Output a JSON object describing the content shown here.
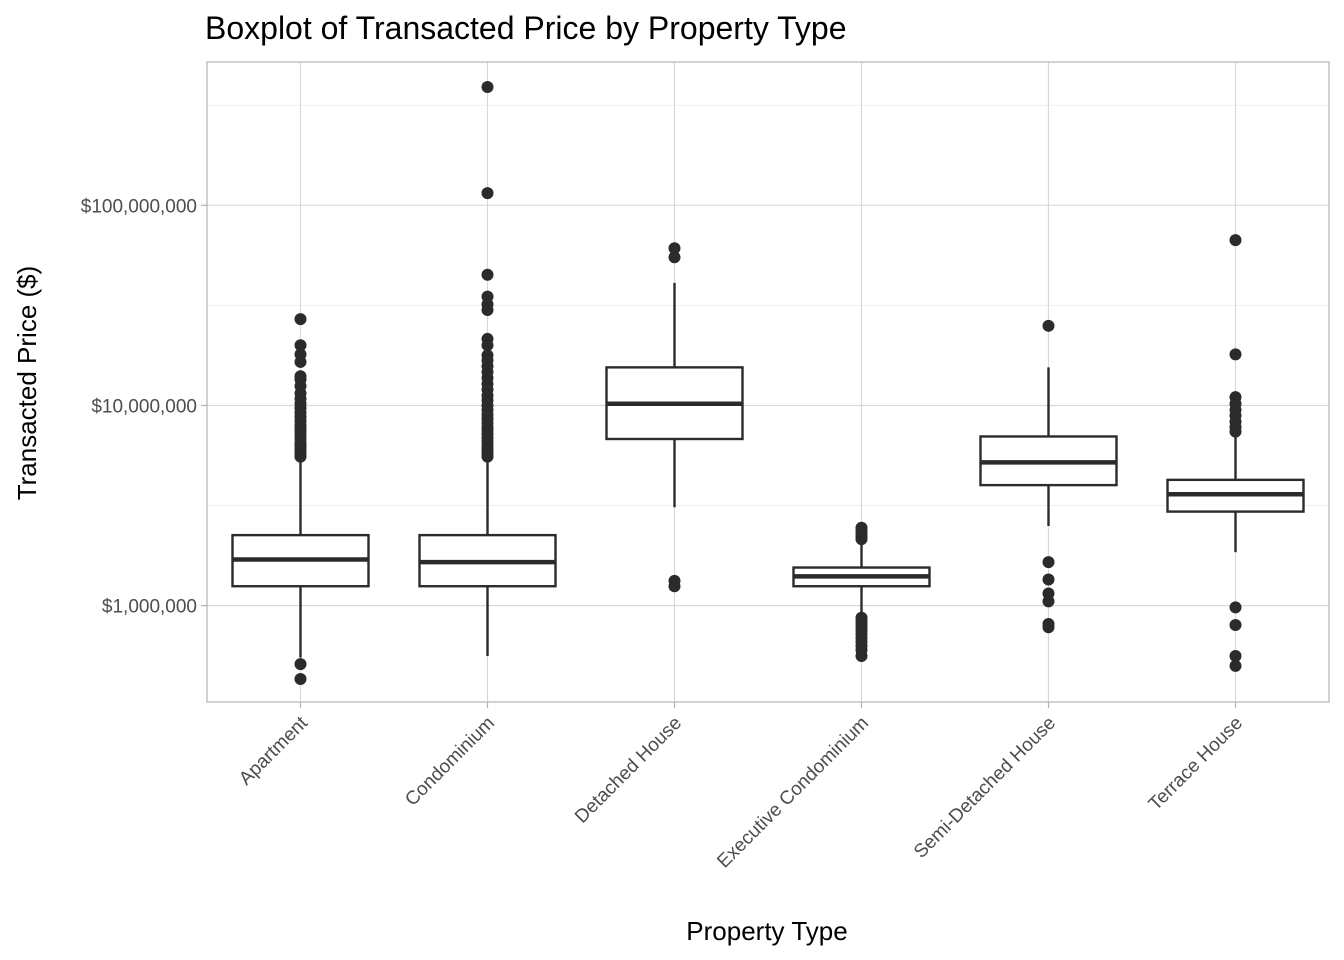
{
  "chart_data": {
    "type": "boxplot",
    "title": "Boxplot of Transacted Price by Property Type",
    "xlabel": "Property Type",
    "ylabel": "Transacted Price ($)",
    "yscale": "log10",
    "ylim": [
      330000,
      520000000
    ],
    "yticks": [
      {
        "value": 1000000,
        "label": "$1,000,000"
      },
      {
        "value": 10000000,
        "label": "$10,000,000"
      },
      {
        "value": 100000000,
        "label": "$100,000,000"
      }
    ],
    "grid": true,
    "categories": [
      "Apartment",
      "Condominium",
      "Detached House",
      "Executive Condominium",
      "Semi-Detached House",
      "Terrace House"
    ],
    "boxes": [
      {
        "category": "Apartment",
        "q1": 1250000,
        "median": 1700000,
        "q3": 2250000,
        "whisker_low": 550000,
        "whisker_high": 5500000,
        "outliers": [
          430000,
          510000,
          5550000,
          5700000,
          5900000,
          6100000,
          6300000,
          6500000,
          6800000,
          7100000,
          7400000,
          7700000,
          8000000,
          8400000,
          8800000,
          9200000,
          9700000,
          10200000,
          10800000,
          11500000,
          12500000,
          13500000,
          14000000,
          16500000,
          18000000,
          20000000,
          27000000
        ]
      },
      {
        "category": "Condominium",
        "q1": 1250000,
        "median": 1650000,
        "q3": 2250000,
        "whisker_low": 560000,
        "whisker_high": 5500000,
        "outliers": [
          5550000,
          5700000,
          5900000,
          6100000,
          6300000,
          6600000,
          6900000,
          7200000,
          7500000,
          7800000,
          8200000,
          8600000,
          9000000,
          9500000,
          10000000,
          10600000,
          11200000,
          12000000,
          12800000,
          13700000,
          14700000,
          15700000,
          16800000,
          17800000,
          20000000,
          21500000,
          30000000,
          32000000,
          35000000,
          45000000,
          115000000,
          390000000
        ]
      },
      {
        "category": "Detached House",
        "q1": 6800000,
        "median": 10200000,
        "q3": 15500000,
        "whisker_low": 3100000,
        "whisker_high": 41000000,
        "outliers": [
          1250000,
          1330000,
          55000000,
          61000000
        ]
      },
      {
        "category": "Executive Condominium",
        "q1": 1250000,
        "median": 1400000,
        "q3": 1550000,
        "whisker_low": 900000,
        "whisker_high": 2100000,
        "outliers": [
          560000,
          600000,
          630000,
          660000,
          690000,
          720000,
          750000,
          780000,
          810000,
          840000,
          870000,
          2150000,
          2220000,
          2300000,
          2380000,
          2450000
        ]
      },
      {
        "category": "Semi-Detached House",
        "q1": 4000000,
        "median": 5200000,
        "q3": 7000000,
        "whisker_low": 2500000,
        "whisker_high": 15500000,
        "outliers": [
          780000,
          810000,
          1050000,
          1150000,
          1350000,
          1650000,
          25000000
        ]
      },
      {
        "category": "Terrace House",
        "q1": 2950000,
        "median": 3600000,
        "q3": 4250000,
        "whisker_low": 1850000,
        "whisker_high": 7000000,
        "outliers": [
          500000,
          560000,
          800000,
          980000,
          7400000,
          7800000,
          8300000,
          8900000,
          9500000,
          10200000,
          11000000,
          18000000,
          67000000
        ]
      }
    ]
  }
}
